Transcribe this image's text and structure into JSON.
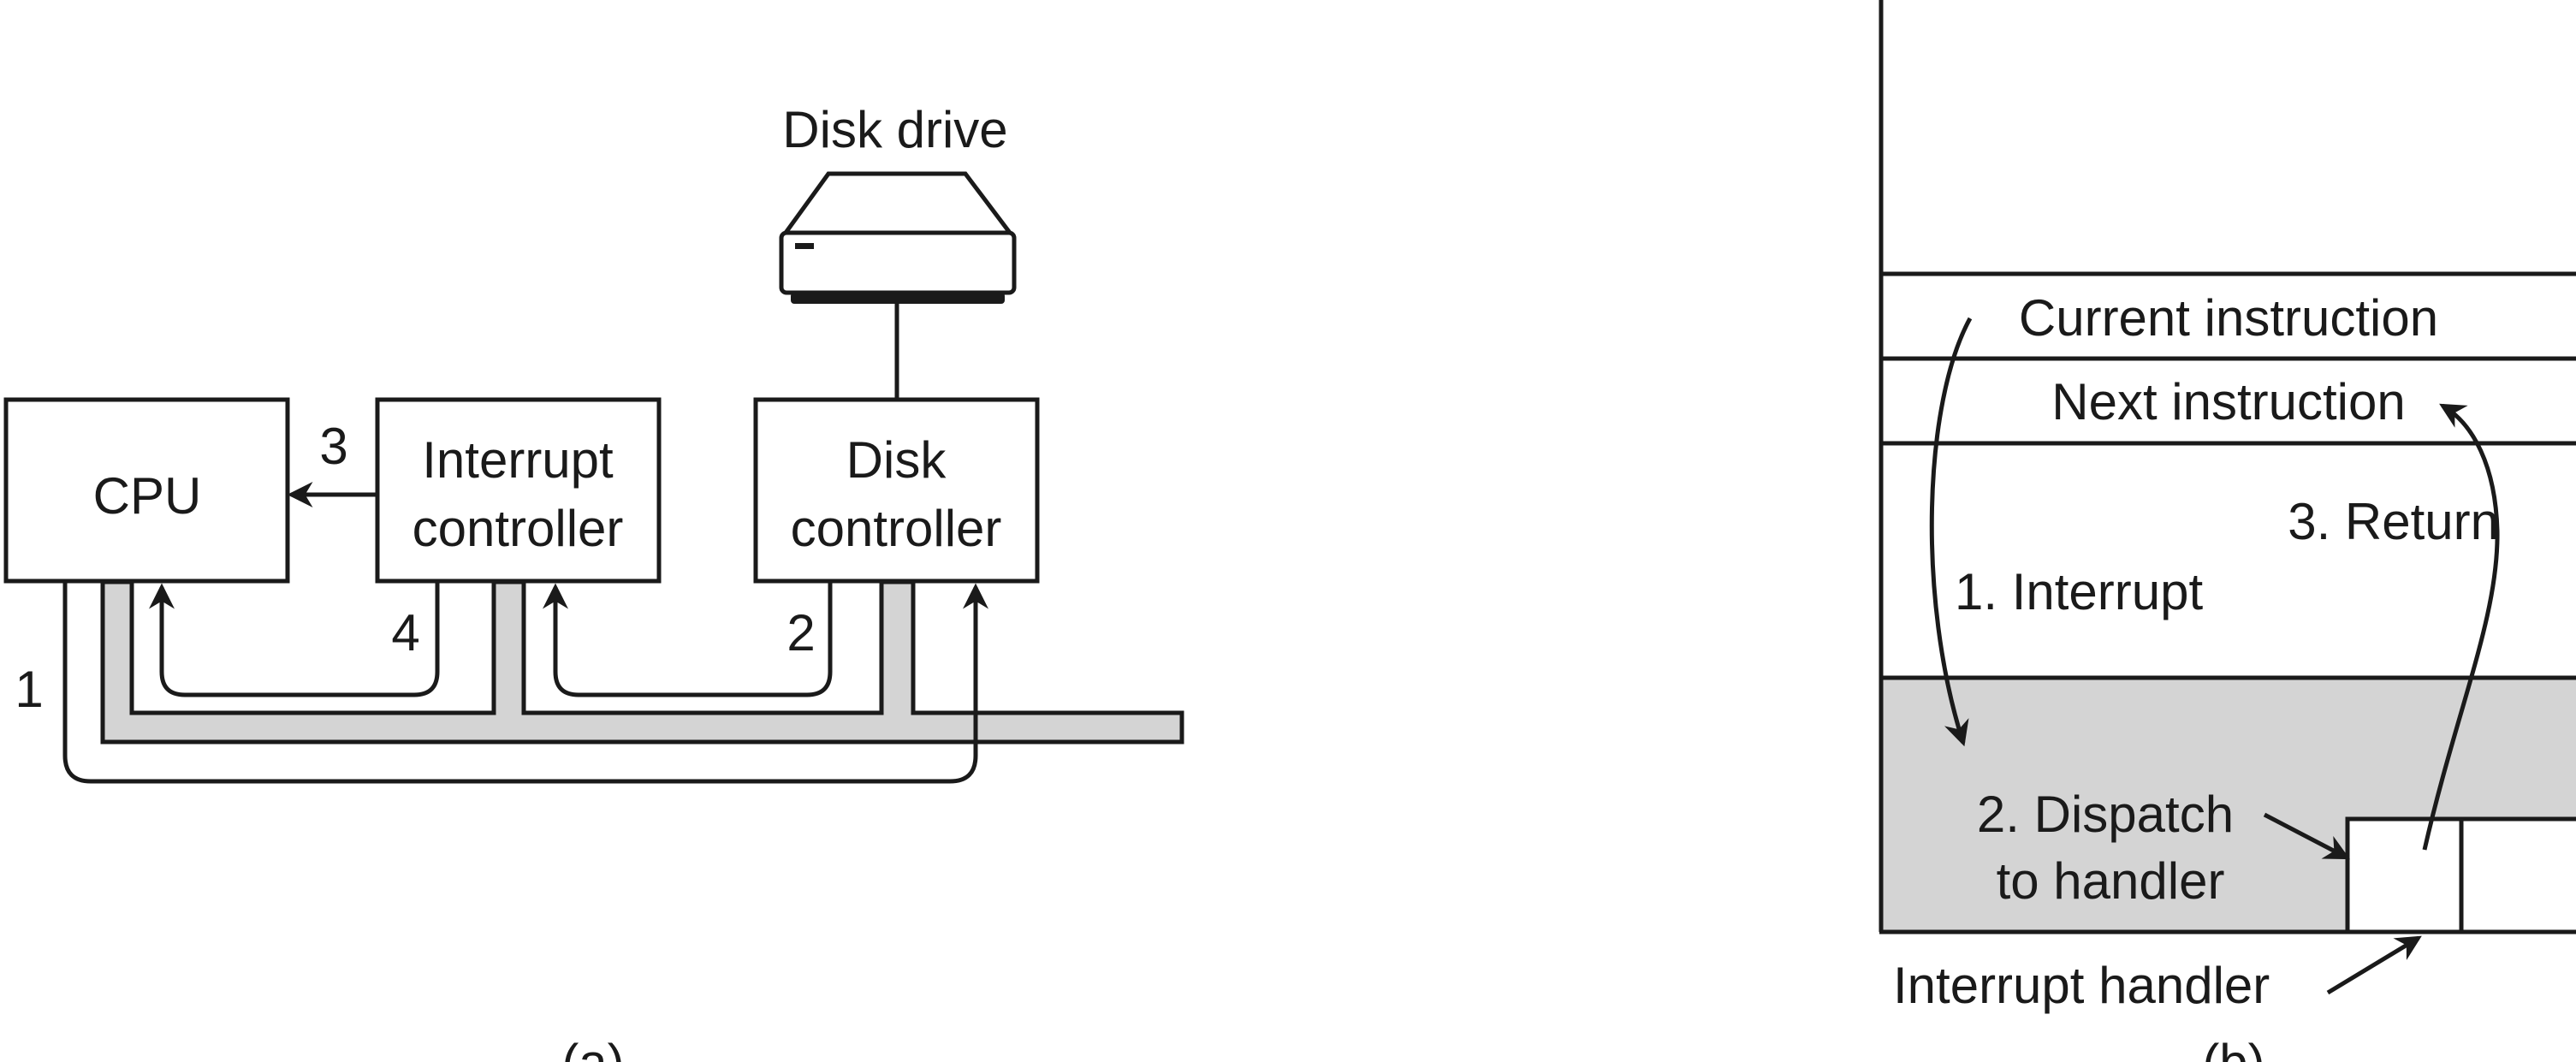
{
  "diagram_a": {
    "disk_drive_label": "Disk drive",
    "cpu_label": "CPU",
    "interrupt_controller_label": [
      "Interrupt",
      "controller"
    ],
    "disk_controller_label": [
      "Disk",
      "controller"
    ],
    "step_labels": [
      "1",
      "2",
      "3",
      "4"
    ],
    "caption": "(a)"
  },
  "diagram_b": {
    "current_instruction": "Current instruction",
    "next_instruction": "Next instruction",
    "return_label": "3. Return",
    "interrupt_label": "1. Interrupt",
    "dispatch_label": [
      "2. Dispatch",
      "to handler"
    ],
    "interrupt_handler_label": "Interrupt handler",
    "caption": "(b)"
  },
  "colors": {
    "line": "#1a1a1a",
    "bus_fill": "#d4d4d4",
    "memory_shade": "#d4d4d4",
    "background": "#ffffff"
  }
}
